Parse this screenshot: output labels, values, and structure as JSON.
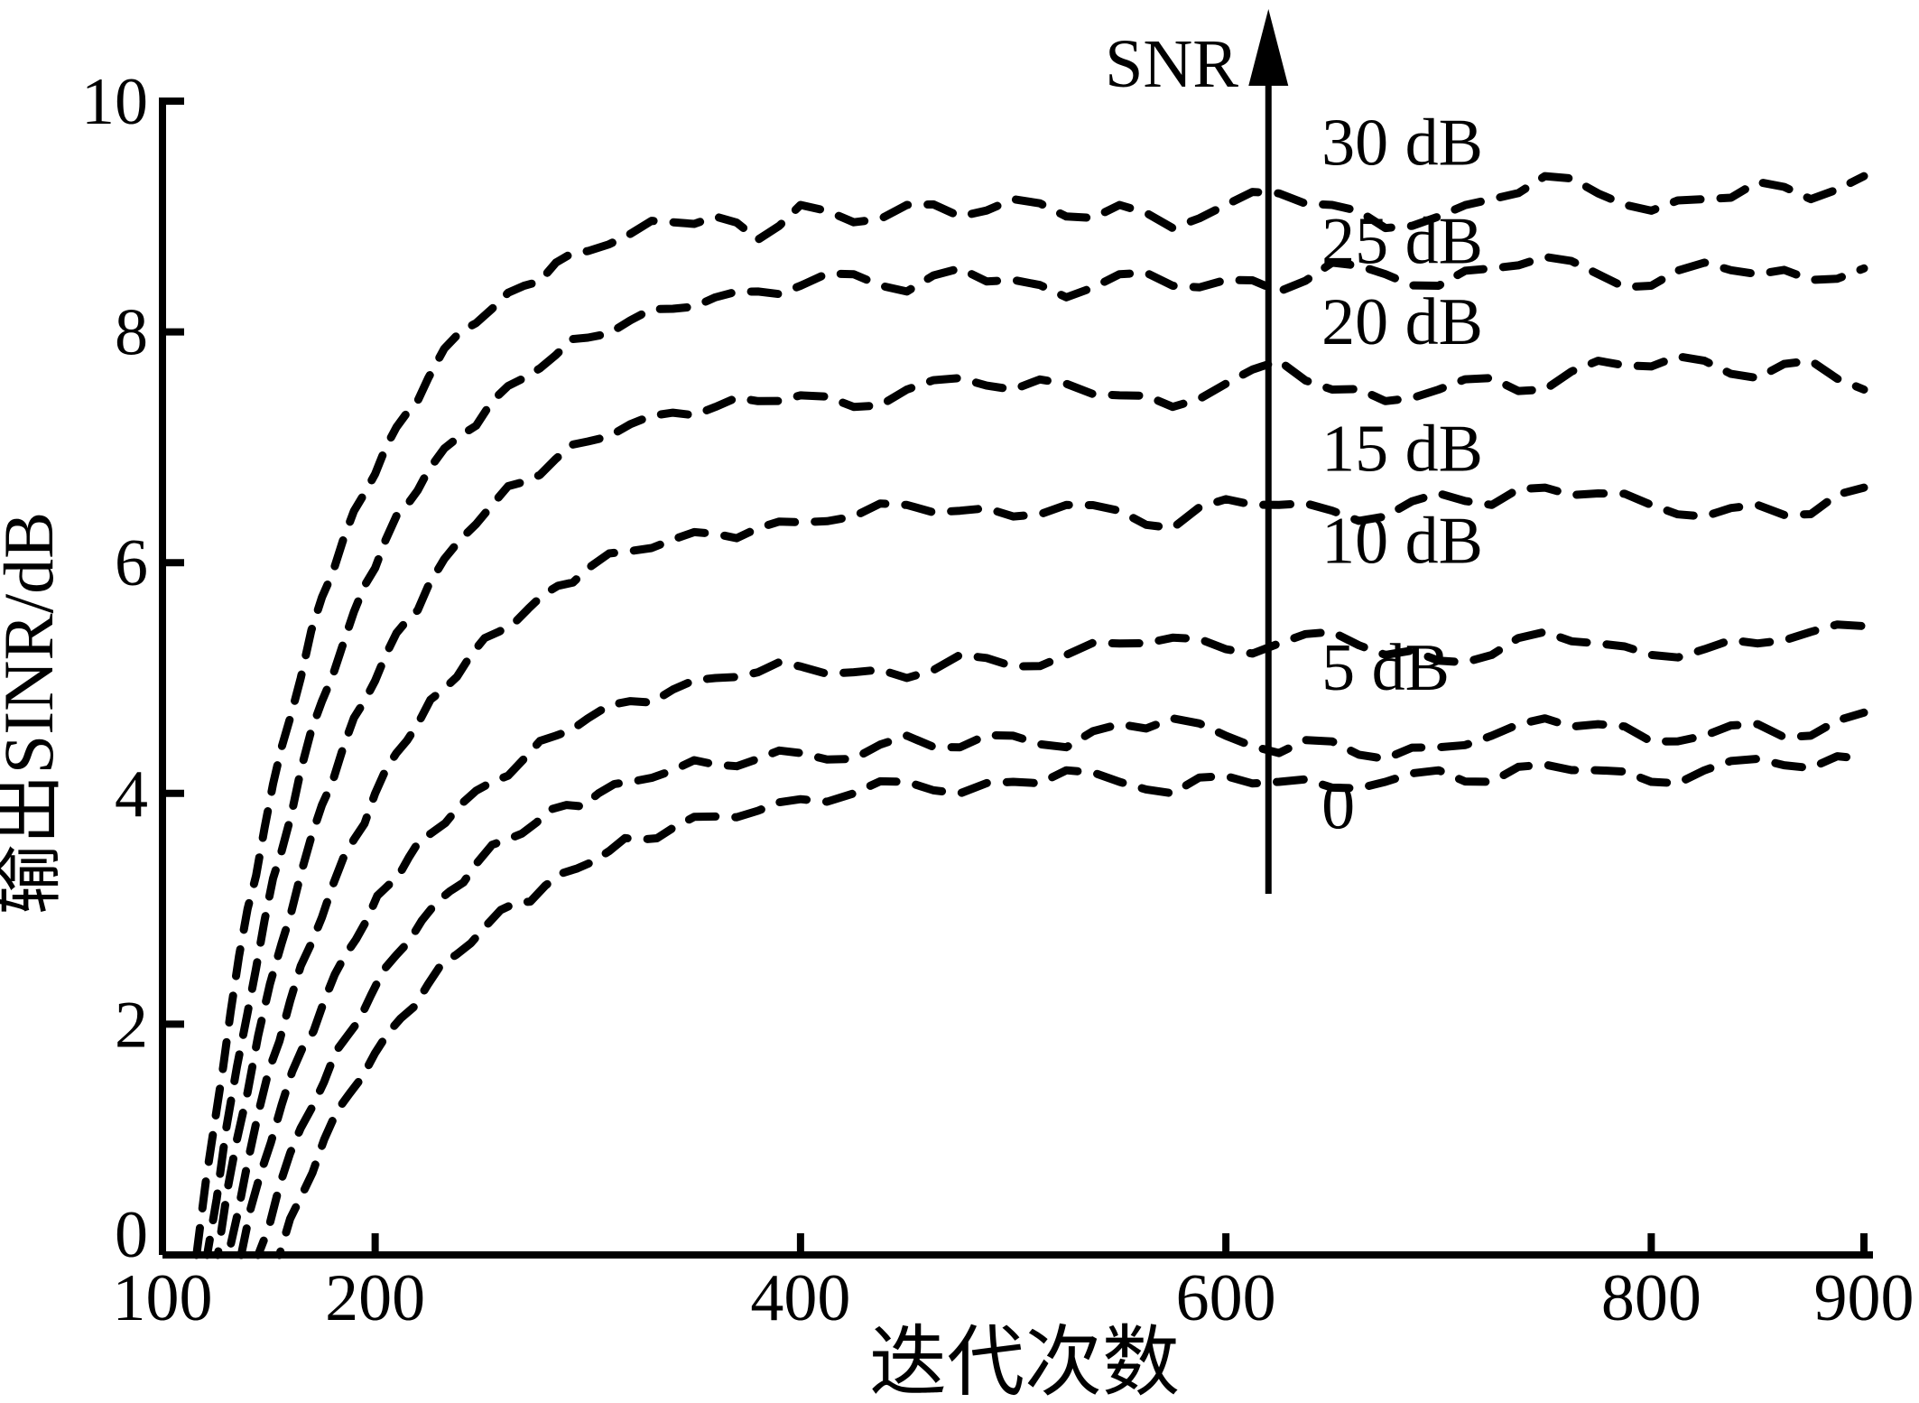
{
  "figure": {
    "background": "#ffffff",
    "line_color": "#000000"
  },
  "chart_data": {
    "type": "line",
    "title": "",
    "xlabel": "迭代次数",
    "ylabel": "输出SINR/dB",
    "xlim": [
      100,
      900
    ],
    "ylim": [
      0,
      10
    ],
    "xticks": [
      100,
      200,
      400,
      600,
      800,
      900
    ],
    "yticks": [
      0,
      2,
      4,
      6,
      8,
      10
    ],
    "grid": false,
    "line_style": "dashed",
    "legend_position": "none",
    "annotation": {
      "arrow_label": "SNR",
      "arrow_x": 620,
      "arrow_direction": "up",
      "series_labels": [
        {
          "text": "30 dB",
          "x": 645,
          "y": 9.65
        },
        {
          "text": "25 dB",
          "x": 645,
          "y": 8.8
        },
        {
          "text": "20 dB",
          "x": 645,
          "y": 8.1
        },
        {
          "text": "15 dB",
          "x": 645,
          "y": 7.0
        },
        {
          "text": "10 dB",
          "x": 645,
          "y": 6.2
        },
        {
          "text": "5 dB",
          "x": 645,
          "y": 5.1
        },
        {
          "text": "0",
          "x": 645,
          "y": 3.9
        }
      ]
    },
    "series": [
      {
        "name": "SNR 30 dB",
        "plateau": 9.2,
        "points": [
          [
            116,
            0
          ],
          [
            125,
            1.2
          ],
          [
            132,
            2.1
          ],
          [
            140,
            3.0
          ],
          [
            148,
            3.7
          ],
          [
            156,
            4.4
          ],
          [
            165,
            5.0
          ],
          [
            175,
            5.7
          ],
          [
            185,
            6.2
          ],
          [
            195,
            6.6
          ],
          [
            205,
            7.0
          ],
          [
            215,
            7.3
          ],
          [
            225,
            7.6
          ],
          [
            240,
            8.0
          ],
          [
            255,
            8.2
          ],
          [
            270,
            8.4
          ],
          [
            285,
            8.6
          ],
          [
            300,
            8.7
          ],
          [
            320,
            8.85
          ],
          [
            340,
            8.95
          ],
          [
            360,
            9.0
          ],
          [
            380,
            8.8
          ],
          [
            400,
            9.1
          ],
          [
            425,
            8.95
          ],
          [
            450,
            9.1
          ],
          [
            475,
            9.0
          ],
          [
            500,
            9.15
          ],
          [
            525,
            9.0
          ],
          [
            550,
            9.1
          ],
          [
            575,
            8.9
          ],
          [
            600,
            9.1
          ],
          [
            625,
            9.2
          ],
          [
            650,
            9.1
          ],
          [
            675,
            8.9
          ],
          [
            700,
            9.0
          ],
          [
            725,
            9.15
          ],
          [
            750,
            9.35
          ],
          [
            775,
            9.2
          ],
          [
            800,
            9.05
          ],
          [
            825,
            9.15
          ],
          [
            850,
            9.3
          ],
          [
            875,
            9.15
          ],
          [
            900,
            9.35
          ]
        ]
      },
      {
        "name": "SNR 25 dB",
        "plateau": 8.55,
        "points": [
          [
            121,
            0
          ],
          [
            130,
            1.1
          ],
          [
            140,
            2.1
          ],
          [
            148,
            2.9
          ],
          [
            156,
            3.5
          ],
          [
            165,
            4.2
          ],
          [
            175,
            4.8
          ],
          [
            185,
            5.3
          ],
          [
            195,
            5.8
          ],
          [
            205,
            6.2
          ],
          [
            215,
            6.5
          ],
          [
            225,
            6.8
          ],
          [
            240,
            7.1
          ],
          [
            255,
            7.4
          ],
          [
            270,
            7.6
          ],
          [
            285,
            7.8
          ],
          [
            300,
            7.95
          ],
          [
            320,
            8.1
          ],
          [
            340,
            8.2
          ],
          [
            360,
            8.3
          ],
          [
            380,
            8.35
          ],
          [
            400,
            8.4
          ],
          [
            425,
            8.5
          ],
          [
            450,
            8.35
          ],
          [
            475,
            8.55
          ],
          [
            500,
            8.45
          ],
          [
            525,
            8.3
          ],
          [
            550,
            8.5
          ],
          [
            575,
            8.4
          ],
          [
            600,
            8.45
          ],
          [
            625,
            8.35
          ],
          [
            650,
            8.6
          ],
          [
            675,
            8.5
          ],
          [
            700,
            8.4
          ],
          [
            725,
            8.55
          ],
          [
            750,
            8.65
          ],
          [
            775,
            8.5
          ],
          [
            800,
            8.4
          ],
          [
            825,
            8.6
          ],
          [
            850,
            8.5
          ],
          [
            875,
            8.45
          ],
          [
            900,
            8.55
          ]
        ]
      },
      {
        "name": "SNR 20 dB",
        "plateau": 7.7,
        "points": [
          [
            126,
            0
          ],
          [
            135,
            1.0
          ],
          [
            145,
            1.9
          ],
          [
            156,
            2.7
          ],
          [
            165,
            3.3
          ],
          [
            175,
            3.9
          ],
          [
            185,
            4.4
          ],
          [
            195,
            4.8
          ],
          [
            205,
            5.2
          ],
          [
            215,
            5.5
          ],
          [
            225,
            5.8
          ],
          [
            240,
            6.2
          ],
          [
            255,
            6.5
          ],
          [
            270,
            6.7
          ],
          [
            285,
            6.9
          ],
          [
            300,
            7.05
          ],
          [
            320,
            7.2
          ],
          [
            340,
            7.3
          ],
          [
            360,
            7.35
          ],
          [
            380,
            7.4
          ],
          [
            400,
            7.45
          ],
          [
            425,
            7.35
          ],
          [
            450,
            7.5
          ],
          [
            475,
            7.6
          ],
          [
            500,
            7.5
          ],
          [
            525,
            7.55
          ],
          [
            550,
            7.45
          ],
          [
            575,
            7.35
          ],
          [
            600,
            7.55
          ],
          [
            625,
            7.75
          ],
          [
            650,
            7.5
          ],
          [
            675,
            7.4
          ],
          [
            700,
            7.5
          ],
          [
            725,
            7.6
          ],
          [
            750,
            7.5
          ],
          [
            775,
            7.75
          ],
          [
            800,
            7.7
          ],
          [
            825,
            7.75
          ],
          [
            850,
            7.6
          ],
          [
            875,
            7.75
          ],
          [
            900,
            7.5
          ]
        ]
      },
      {
        "name": "SNR 15 dB",
        "plateau": 6.6,
        "points": [
          [
            131,
            0
          ],
          [
            140,
            0.8
          ],
          [
            150,
            1.6
          ],
          [
            160,
            2.2
          ],
          [
            170,
            2.7
          ],
          [
            180,
            3.2
          ],
          [
            190,
            3.6
          ],
          [
            200,
            4.0
          ],
          [
            210,
            4.35
          ],
          [
            220,
            4.6
          ],
          [
            232,
            4.9
          ],
          [
            245,
            5.2
          ],
          [
            258,
            5.4
          ],
          [
            272,
            5.6
          ],
          [
            286,
            5.8
          ],
          [
            300,
            5.95
          ],
          [
            320,
            6.1
          ],
          [
            340,
            6.2
          ],
          [
            360,
            6.25
          ],
          [
            380,
            6.3
          ],
          [
            400,
            6.35
          ],
          [
            425,
            6.4
          ],
          [
            450,
            6.5
          ],
          [
            475,
            6.45
          ],
          [
            500,
            6.4
          ],
          [
            525,
            6.5
          ],
          [
            550,
            6.45
          ],
          [
            575,
            6.3
          ],
          [
            600,
            6.55
          ],
          [
            625,
            6.5
          ],
          [
            650,
            6.45
          ],
          [
            675,
            6.4
          ],
          [
            700,
            6.6
          ],
          [
            725,
            6.5
          ],
          [
            750,
            6.65
          ],
          [
            775,
            6.6
          ],
          [
            800,
            6.5
          ],
          [
            825,
            6.4
          ],
          [
            850,
            6.5
          ],
          [
            875,
            6.42
          ],
          [
            900,
            6.65
          ]
        ]
      },
      {
        "name": "SNR 10 dB",
        "plateau": 5.35,
        "points": [
          [
            137,
            0
          ],
          [
            146,
            0.7
          ],
          [
            156,
            1.3
          ],
          [
            166,
            1.8
          ],
          [
            176,
            2.2
          ],
          [
            186,
            2.6
          ],
          [
            196,
            2.9
          ],
          [
            206,
            3.2
          ],
          [
            216,
            3.45
          ],
          [
            226,
            3.65
          ],
          [
            240,
            3.9
          ],
          [
            255,
            4.1
          ],
          [
            270,
            4.3
          ],
          [
            285,
            4.5
          ],
          [
            300,
            4.65
          ],
          [
            320,
            4.8
          ],
          [
            340,
            4.9
          ],
          [
            360,
            5.0
          ],
          [
            380,
            5.05
          ],
          [
            400,
            5.1
          ],
          [
            425,
            5.05
          ],
          [
            450,
            5.0
          ],
          [
            475,
            5.2
          ],
          [
            500,
            5.1
          ],
          [
            525,
            5.2
          ],
          [
            550,
            5.3
          ],
          [
            575,
            5.35
          ],
          [
            600,
            5.25
          ],
          [
            625,
            5.3
          ],
          [
            650,
            5.4
          ],
          [
            675,
            5.2
          ],
          [
            700,
            5.15
          ],
          [
            725,
            5.2
          ],
          [
            750,
            5.4
          ],
          [
            775,
            5.3
          ],
          [
            800,
            5.2
          ],
          [
            825,
            5.25
          ],
          [
            850,
            5.3
          ],
          [
            875,
            5.4
          ],
          [
            900,
            5.45
          ]
        ]
      },
      {
        "name": "SNR 5 dB",
        "plateau": 4.6,
        "points": [
          [
            145,
            0
          ],
          [
            155,
            0.6
          ],
          [
            165,
            1.1
          ],
          [
            176,
            1.5
          ],
          [
            187,
            1.9
          ],
          [
            198,
            2.25
          ],
          [
            210,
            2.6
          ],
          [
            222,
            2.9
          ],
          [
            235,
            3.15
          ],
          [
            248,
            3.4
          ],
          [
            262,
            3.6
          ],
          [
            276,
            3.75
          ],
          [
            290,
            3.9
          ],
          [
            305,
            4.0
          ],
          [
            320,
            4.1
          ],
          [
            340,
            4.2
          ],
          [
            360,
            4.25
          ],
          [
            380,
            4.3
          ],
          [
            400,
            4.35
          ],
          [
            425,
            4.3
          ],
          [
            450,
            4.5
          ],
          [
            475,
            4.4
          ],
          [
            500,
            4.5
          ],
          [
            525,
            4.4
          ],
          [
            550,
            4.6
          ],
          [
            575,
            4.65
          ],
          [
            600,
            4.5
          ],
          [
            625,
            4.35
          ],
          [
            650,
            4.45
          ],
          [
            675,
            4.3
          ],
          [
            700,
            4.4
          ],
          [
            725,
            4.5
          ],
          [
            750,
            4.65
          ],
          [
            775,
            4.6
          ],
          [
            800,
            4.45
          ],
          [
            825,
            4.5
          ],
          [
            850,
            4.6
          ],
          [
            875,
            4.5
          ],
          [
            900,
            4.7
          ]
        ]
      },
      {
        "name": "SNR 0 dB",
        "plateau": 4.2,
        "points": [
          [
            155,
            0
          ],
          [
            165,
            0.5
          ],
          [
            176,
            1.0
          ],
          [
            188,
            1.4
          ],
          [
            200,
            1.75
          ],
          [
            212,
            2.05
          ],
          [
            225,
            2.35
          ],
          [
            238,
            2.6
          ],
          [
            252,
            2.85
          ],
          [
            266,
            3.05
          ],
          [
            280,
            3.2
          ],
          [
            295,
            3.35
          ],
          [
            310,
            3.5
          ],
          [
            325,
            3.6
          ],
          [
            340,
            3.7
          ],
          [
            360,
            3.8
          ],
          [
            380,
            3.85
          ],
          [
            400,
            3.95
          ],
          [
            425,
            4.0
          ],
          [
            450,
            4.1
          ],
          [
            475,
            4.0
          ],
          [
            500,
            4.1
          ],
          [
            525,
            4.2
          ],
          [
            550,
            4.1
          ],
          [
            575,
            4.0
          ],
          [
            600,
            4.15
          ],
          [
            625,
            4.1
          ],
          [
            650,
            4.05
          ],
          [
            675,
            4.1
          ],
          [
            700,
            4.2
          ],
          [
            725,
            4.1
          ],
          [
            750,
            4.25
          ],
          [
            775,
            4.2
          ],
          [
            800,
            4.1
          ],
          [
            825,
            4.2
          ],
          [
            850,
            4.3
          ],
          [
            875,
            4.22
          ],
          [
            900,
            4.3
          ]
        ]
      }
    ]
  }
}
